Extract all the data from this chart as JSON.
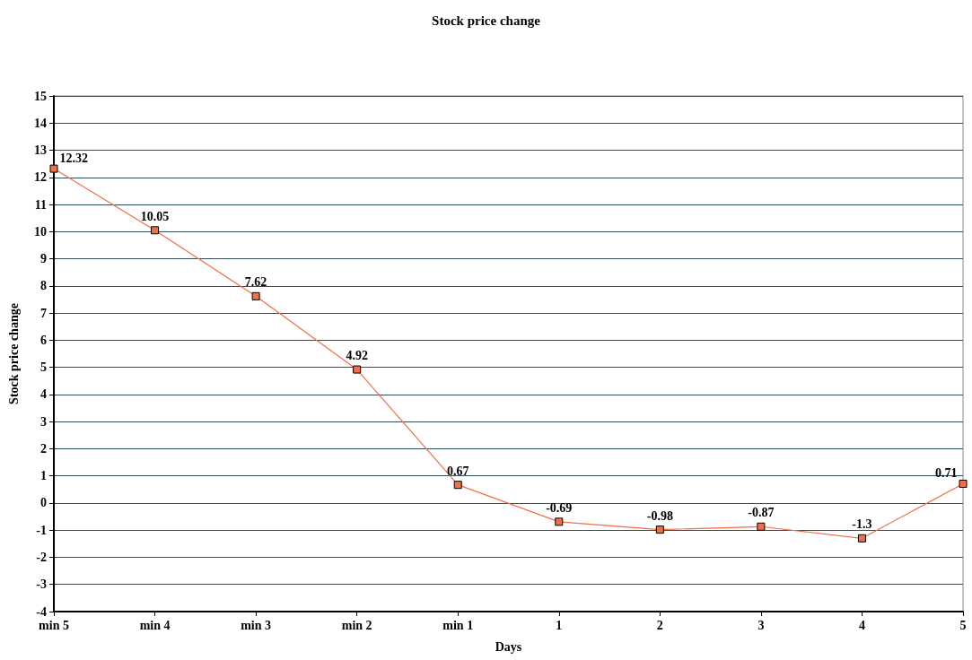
{
  "chart_data": {
    "type": "line",
    "title": "Stock price change",
    "xlabel": "Days",
    "ylabel": "Stock price change",
    "categories": [
      "min 5",
      "min 4",
      "min 3",
      "min 2",
      "min 1",
      "1",
      "2",
      "3",
      "4",
      "5"
    ],
    "series": [
      {
        "color": "#f07048",
        "values": [
          12.32,
          10.05,
          7.62,
          4.92,
          0.67,
          -0.69,
          -0.98,
          -0.87,
          -1.3,
          0.71
        ]
      }
    ],
    "ylim": [
      -4,
      15
    ],
    "yticks": [
      -4,
      -3,
      -2,
      -1,
      0,
      1,
      2,
      3,
      4,
      5,
      6,
      7,
      8,
      9,
      10,
      11,
      12,
      13,
      14,
      15
    ],
    "grid": "y",
    "marker": "square",
    "line_style": "solid",
    "data_labels": true
  }
}
